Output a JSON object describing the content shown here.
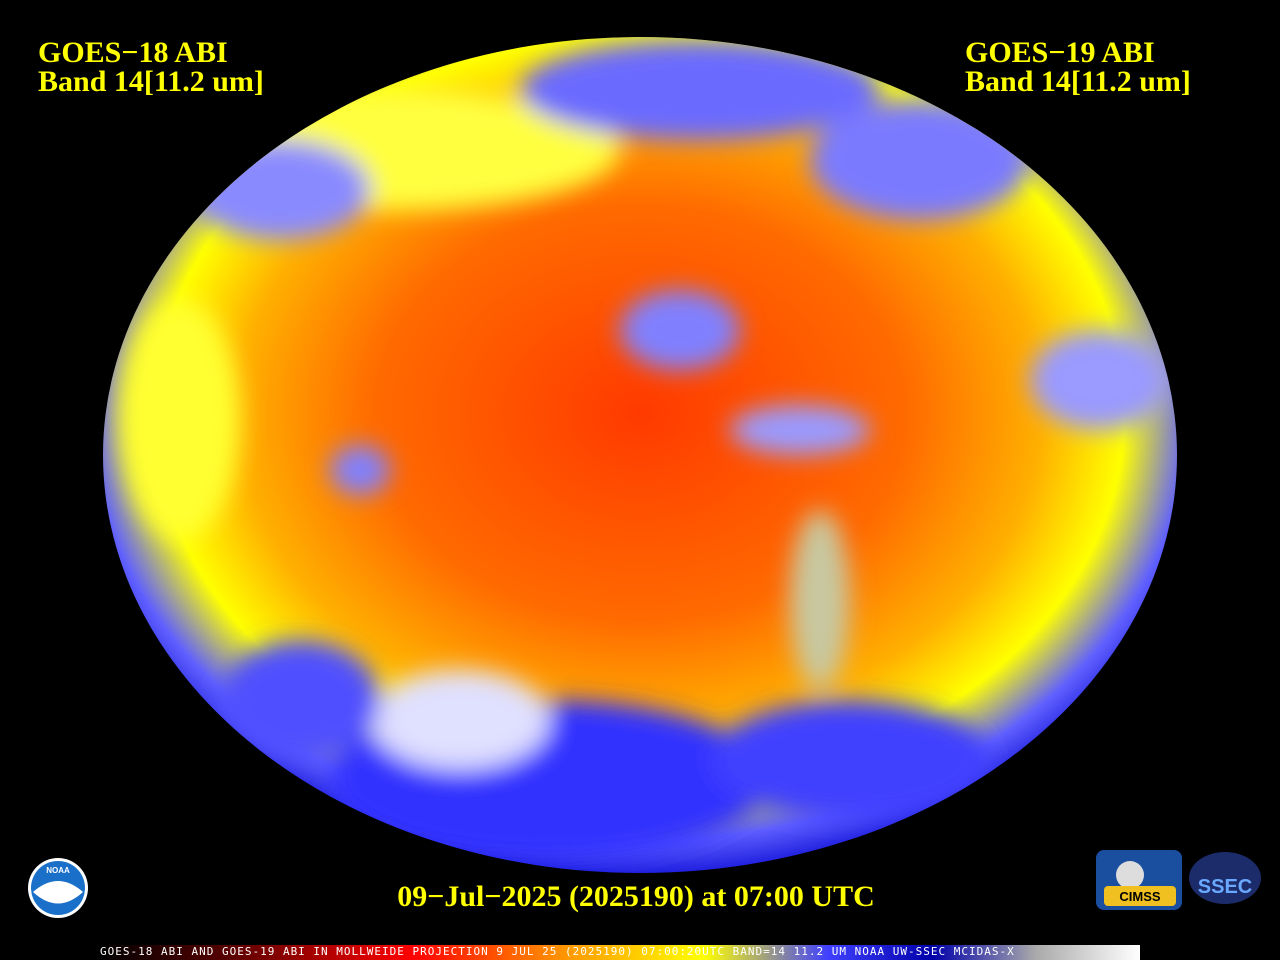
{
  "header": {
    "left": {
      "line1": "GOES−18 ABI",
      "line2": "Band 14[11.2 um]"
    },
    "right": {
      "line1": "GOES−19 ABI",
      "line2": "Band 14[11.2 um]"
    }
  },
  "timestamp": "09−Jul−2025 (2025190) at 07:00 UTC",
  "caption": "GOES-18 ABI AND GOES-19 ABI IN MOLLWEIDE PROJECTION 9 JUL 25 (2025190) 07:00:20UTC BAND=14 11.2 UM NOAA UW-SSEC MCIDAS-X",
  "logos": {
    "noaa": "NOAA",
    "cimss": "CIMSS",
    "ssec": "SSEC"
  }
}
